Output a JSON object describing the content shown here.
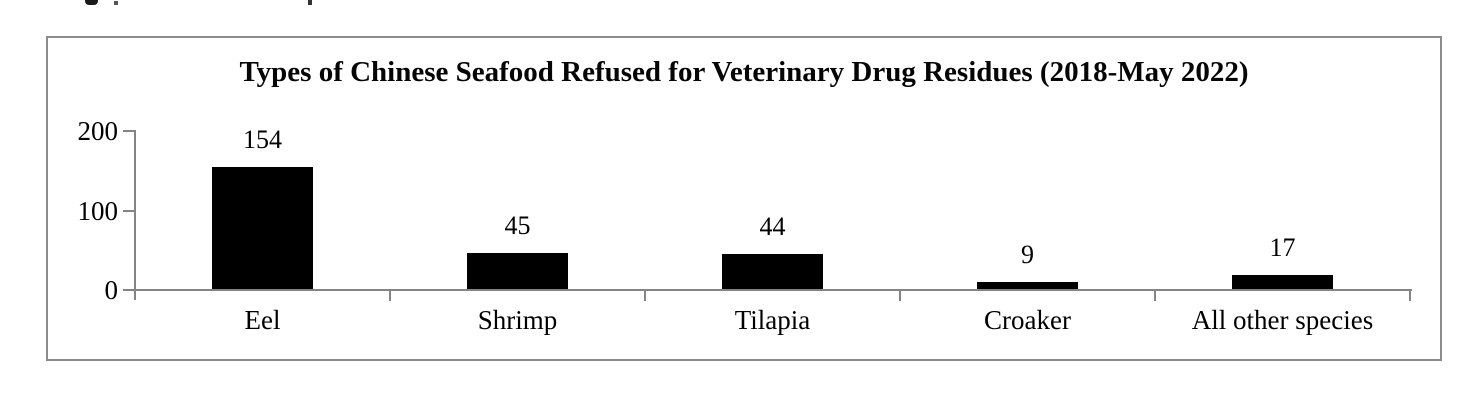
{
  "chart_data": {
    "type": "bar",
    "title": "Types of Chinese Seafood Refused for Veterinary Drug Residues (2018-May 2022)",
    "categories": [
      "Eel",
      "Shrimp",
      "Tilapia",
      "Croaker",
      "All other species"
    ],
    "values": [
      154,
      45,
      44,
      9,
      17
    ],
    "value_labels_shown": true,
    "xlabel": "",
    "ylabel": "",
    "ylim": [
      0,
      200
    ],
    "yticks": [
      0,
      100,
      200
    ],
    "grid": false,
    "legend": false,
    "bar_color": "#000000",
    "axis_color": "#848484",
    "border_color": "#8c8c8c",
    "background_color": "#ffffff"
  }
}
